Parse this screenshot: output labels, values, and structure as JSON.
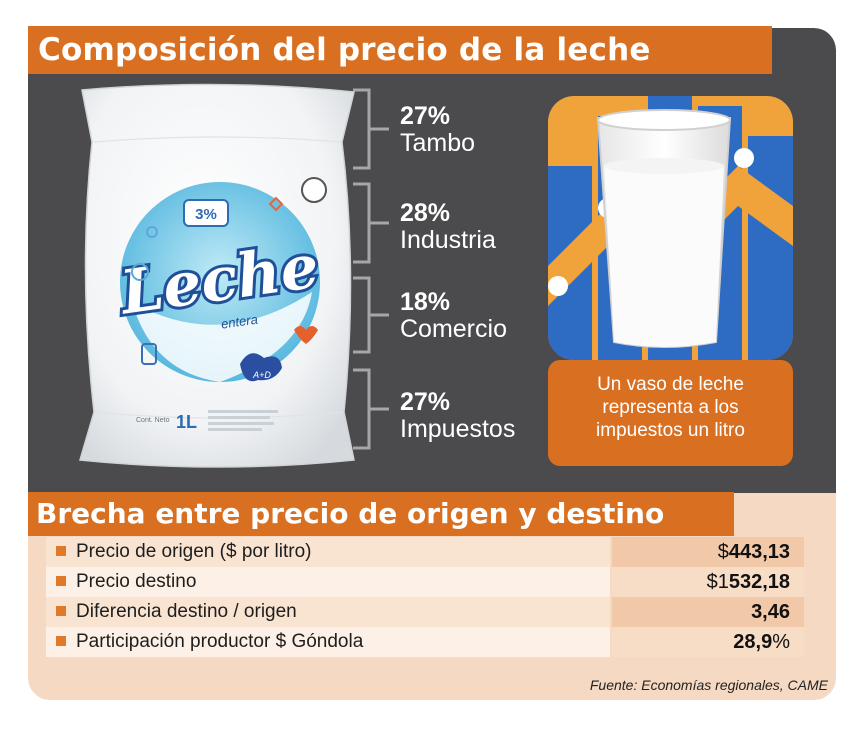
{
  "title": "Composición del precio de la leche",
  "bag_labels": {
    "brand": "Leche",
    "subtitle": "entera",
    "badge": "3%",
    "volume": "1L",
    "content_label": "Cont. Neto",
    "vitamins": "A+D"
  },
  "chart_data": {
    "type": "table",
    "title": "Composición del precio de la leche",
    "categories": [
      "Tambo",
      "Industria",
      "Comercio",
      "Impuestos"
    ],
    "values": [
      27,
      28,
      18,
      27
    ],
    "value_labels": [
      "27%",
      "28%",
      "18%",
      "27%"
    ],
    "unit": "%"
  },
  "note": {
    "lines": [
      "Un vaso de leche",
      "representa a los",
      "impuestos un litro"
    ]
  },
  "gap": {
    "title": "Brecha entre precio de origen y destino",
    "rows": [
      {
        "label": "Precio de origen ($ por litro)",
        "value_prefix": "$",
        "value_main": "443,13",
        "value_suffix": ""
      },
      {
        "label": "Precio destino",
        "value_prefix": "$1",
        "value_main": "532,18",
        "value_suffix": ""
      },
      {
        "label": "Diferencia destino / origen",
        "value_prefix": "",
        "value_main": "3,46",
        "value_suffix": ""
      },
      {
        "label": "Participación productor $ Góndola",
        "value_prefix": "",
        "value_main": "28,9",
        "value_suffix": "%"
      }
    ]
  },
  "source": "Fuente: Economías regionales, CAME",
  "colors": {
    "accent_orange": "#d96f20",
    "dark_panel": "#4b4a4c",
    "peach_background": "#f6d9c2",
    "blue_tile": "#2f6fc0"
  }
}
